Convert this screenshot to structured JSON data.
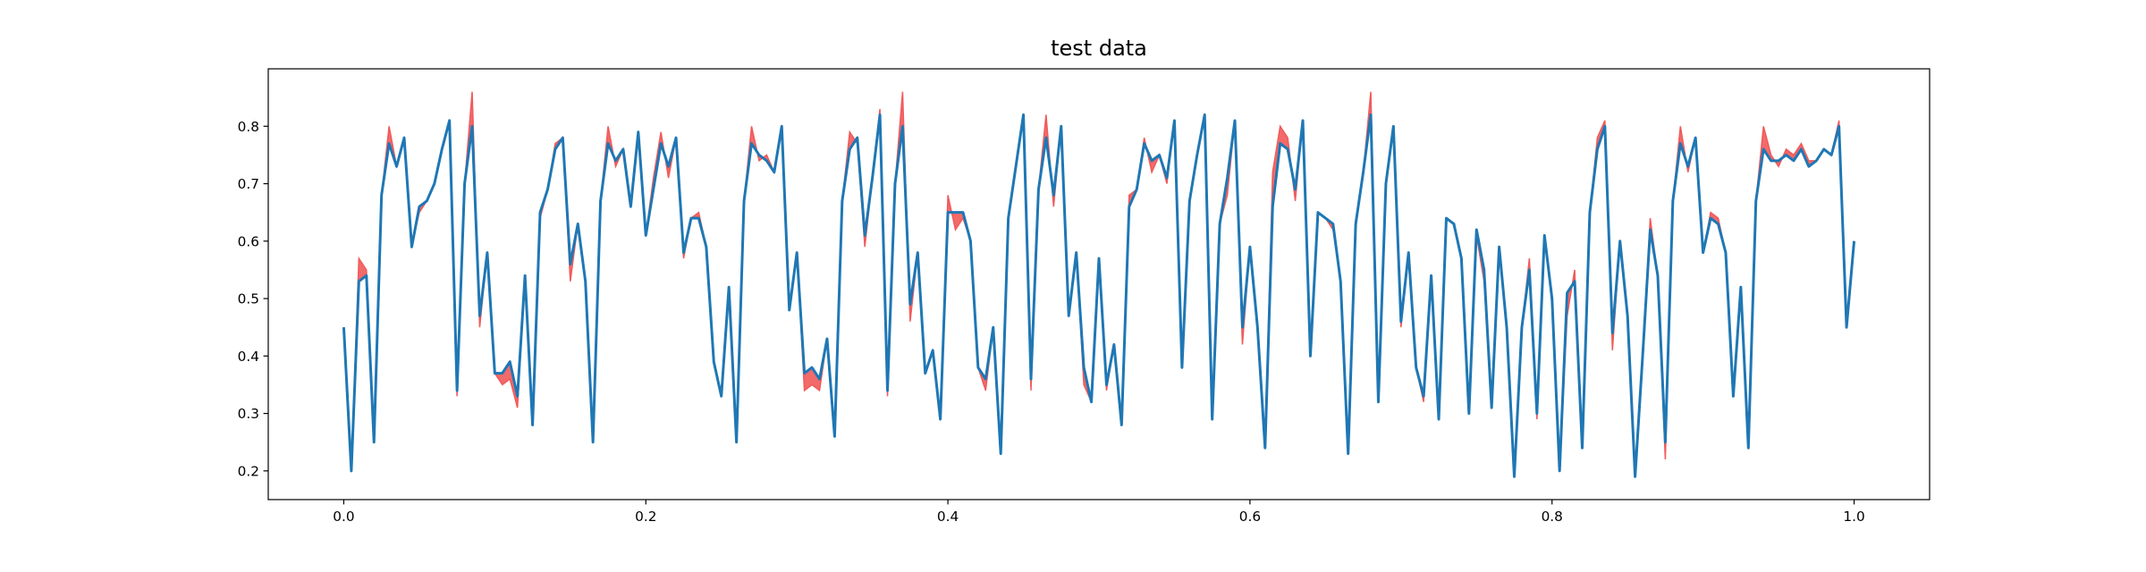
{
  "chart_data": {
    "type": "line",
    "title": "test data",
    "x": [
      0,
      0.005,
      0.01,
      0.015,
      0.02,
      0.025,
      0.03,
      0.035,
      0.04,
      0.045,
      0.05,
      0.055,
      0.06,
      0.065,
      0.07,
      0.075,
      0.08,
      0.085,
      0.09,
      0.095,
      0.1,
      0.105,
      0.11,
      0.115,
      0.12,
      0.125,
      0.13,
      0.135,
      0.14,
      0.145,
      0.15,
      0.155,
      0.16,
      0.165,
      0.17,
      0.175,
      0.18,
      0.185,
      0.19,
      0.195,
      0.2,
      0.205,
      0.21,
      0.215,
      0.22,
      0.225,
      0.23,
      0.235,
      0.24,
      0.245,
      0.25,
      0.255,
      0.26,
      0.265,
      0.27,
      0.275,
      0.28,
      0.285,
      0.29,
      0.295,
      0.3,
      0.305,
      0.31,
      0.315,
      0.32,
      0.325,
      0.33,
      0.335,
      0.34,
      0.345,
      0.35,
      0.355,
      0.36,
      0.365,
      0.37,
      0.375,
      0.38,
      0.385,
      0.39,
      0.395,
      0.4,
      0.405,
      0.41,
      0.415,
      0.42,
      0.425,
      0.43,
      0.435,
      0.44,
      0.445,
      0.45,
      0.455,
      0.46,
      0.465,
      0.47,
      0.475,
      0.48,
      0.485,
      0.49,
      0.495,
      0.5,
      0.505,
      0.51,
      0.515,
      0.52,
      0.525,
      0.53,
      0.535,
      0.54,
      0.545,
      0.55,
      0.555,
      0.56,
      0.565,
      0.57,
      0.575,
      0.58,
      0.585,
      0.59,
      0.595,
      0.6,
      0.605,
      0.61,
      0.615,
      0.62,
      0.625,
      0.63,
      0.635,
      0.64,
      0.645,
      0.65,
      0.655,
      0.66,
      0.665,
      0.67,
      0.675,
      0.68,
      0.685,
      0.69,
      0.695,
      0.7,
      0.705,
      0.71,
      0.715,
      0.72,
      0.725,
      0.73,
      0.735,
      0.74,
      0.745,
      0.75,
      0.755,
      0.76,
      0.765,
      0.77,
      0.775,
      0.78,
      0.785,
      0.79,
      0.795,
      0.8,
      0.805,
      0.81,
      0.815,
      0.82,
      0.825,
      0.83,
      0.835,
      0.84,
      0.845,
      0.85,
      0.855,
      0.86,
      0.865,
      0.87,
      0.875,
      0.88,
      0.885,
      0.89,
      0.895,
      0.9,
      0.905,
      0.91,
      0.915,
      0.92,
      0.925,
      0.93,
      0.935,
      0.94,
      0.945,
      0.95,
      0.955,
      0.96,
      0.965,
      0.97,
      0.975,
      0.98,
      0.985,
      0.99,
      0.995,
      1
    ],
    "series": [
      {
        "color": "#1f77b4",
        "values": [
          0.45,
          0.2,
          0.53,
          0.54,
          0.25,
          0.68,
          0.77,
          0.73,
          0.78,
          0.59,
          0.66,
          0.67,
          0.7,
          0.76,
          0.81,
          0.34,
          0.7,
          0.8,
          0.47,
          0.58,
          0.37,
          0.37,
          0.39,
          0.33,
          0.54,
          0.28,
          0.65,
          0.69,
          0.76,
          0.78,
          0.56,
          0.63,
          0.53,
          0.25,
          0.67,
          0.77,
          0.74,
          0.76,
          0.66,
          0.79,
          0.61,
          0.69,
          0.77,
          0.73,
          0.78,
          0.58,
          0.64,
          0.64,
          0.59,
          0.39,
          0.33,
          0.52,
          0.25,
          0.67,
          0.77,
          0.75,
          0.74,
          0.72,
          0.8,
          0.48,
          0.58,
          0.37,
          0.38,
          0.36,
          0.43,
          0.26,
          0.67,
          0.76,
          0.78,
          0.61,
          0.71,
          0.82,
          0.34,
          0.7,
          0.8,
          0.49,
          0.58,
          0.37,
          0.41,
          0.29,
          0.65,
          0.65,
          0.65,
          0.6,
          0.38,
          0.36,
          0.45,
          0.23,
          0.64,
          0.73,
          0.82,
          0.36,
          0.69,
          0.78,
          0.68,
          0.8,
          0.47,
          0.58,
          0.38,
          0.32,
          0.57,
          0.35,
          0.42,
          0.28,
          0.66,
          0.69,
          0.77,
          0.74,
          0.75,
          0.71,
          0.81,
          0.38,
          0.67,
          0.75,
          0.82,
          0.29,
          0.63,
          0.71,
          0.81,
          0.45,
          0.59,
          0.45,
          0.24,
          0.66,
          0.77,
          0.76,
          0.69,
          0.81,
          0.4,
          0.65,
          0.64,
          0.63,
          0.53,
          0.23,
          0.63,
          0.72,
          0.82,
          0.32,
          0.7,
          0.8,
          0.46,
          0.58,
          0.38,
          0.33,
          0.54,
          0.29,
          0.64,
          0.63,
          0.57,
          0.3,
          0.62,
          0.55,
          0.31,
          0.59,
          0.45,
          0.19,
          0.45,
          0.55,
          0.3,
          0.61,
          0.5,
          0.2,
          0.51,
          0.53,
          0.24,
          0.65,
          0.76,
          0.8,
          0.44,
          0.6,
          0.47,
          0.19,
          0.4,
          0.62,
          0.54,
          0.25,
          0.67,
          0.77,
          0.73,
          0.78,
          0.58,
          0.64,
          0.63,
          0.58,
          0.33,
          0.52,
          0.24,
          0.67,
          0.76,
          0.74,
          0.74,
          0.75,
          0.74,
          0.76,
          0.73,
          0.74,
          0.76,
          0.75,
          0.8,
          0.45,
          0.6
        ]
      },
      {
        "color": "#f15a5a",
        "fill": true,
        "values": [
          0.45,
          0.2,
          0.57,
          0.55,
          0.25,
          0.68,
          0.8,
          0.73,
          0.78,
          0.59,
          0.65,
          0.67,
          0.7,
          0.76,
          0.81,
          0.33,
          0.7,
          0.86,
          0.45,
          0.58,
          0.37,
          0.35,
          0.36,
          0.31,
          0.54,
          0.28,
          0.64,
          0.69,
          0.77,
          0.78,
          0.53,
          0.63,
          0.53,
          0.25,
          0.67,
          0.8,
          0.73,
          0.76,
          0.66,
          0.78,
          0.61,
          0.71,
          0.79,
          0.71,
          0.78,
          0.57,
          0.64,
          0.65,
          0.59,
          0.39,
          0.33,
          0.52,
          0.25,
          0.67,
          0.8,
          0.74,
          0.75,
          0.72,
          0.8,
          0.48,
          0.58,
          0.34,
          0.35,
          0.34,
          0.43,
          0.26,
          0.67,
          0.79,
          0.77,
          0.59,
          0.71,
          0.83,
          0.33,
          0.7,
          0.86,
          0.46,
          0.58,
          0.37,
          0.41,
          0.29,
          0.68,
          0.62,
          0.64,
          0.6,
          0.38,
          0.34,
          0.45,
          0.23,
          0.64,
          0.73,
          0.82,
          0.34,
          0.69,
          0.82,
          0.66,
          0.8,
          0.47,
          0.58,
          0.35,
          0.32,
          0.57,
          0.34,
          0.42,
          0.28,
          0.68,
          0.69,
          0.78,
          0.72,
          0.75,
          0.7,
          0.81,
          0.38,
          0.67,
          0.75,
          0.82,
          0.29,
          0.63,
          0.68,
          0.81,
          0.42,
          0.59,
          0.45,
          0.24,
          0.72,
          0.8,
          0.78,
          0.67,
          0.81,
          0.4,
          0.65,
          0.64,
          0.62,
          0.53,
          0.23,
          0.63,
          0.72,
          0.86,
          0.32,
          0.7,
          0.8,
          0.45,
          0.58,
          0.38,
          0.32,
          0.54,
          0.29,
          0.64,
          0.63,
          0.57,
          0.3,
          0.61,
          0.53,
          0.31,
          0.59,
          0.45,
          0.2,
          0.45,
          0.57,
          0.29,
          0.61,
          0.49,
          0.2,
          0.47,
          0.55,
          0.24,
          0.65,
          0.78,
          0.81,
          0.41,
          0.6,
          0.47,
          0.19,
          0.4,
          0.64,
          0.54,
          0.22,
          0.67,
          0.8,
          0.72,
          0.78,
          0.58,
          0.65,
          0.64,
          0.58,
          0.33,
          0.52,
          0.24,
          0.67,
          0.8,
          0.75,
          0.73,
          0.76,
          0.75,
          0.77,
          0.74,
          0.74,
          0.76,
          0.75,
          0.81,
          0.45,
          0.6
        ]
      }
    ],
    "xlim": [
      -0.05,
      1.05
    ],
    "xticks": [
      {
        "value": 0,
        "label": "0.0"
      },
      0.2,
      0.4,
      0.6,
      0.8,
      {
        "value": 1,
        "label": "1.0"
      }
    ],
    "ylim": [
      0.15,
      0.9
    ],
    "yticks": [
      0.2,
      0.3,
      0.4,
      0.5,
      0.6,
      0.7,
      0.8
    ],
    "grid": false
  }
}
